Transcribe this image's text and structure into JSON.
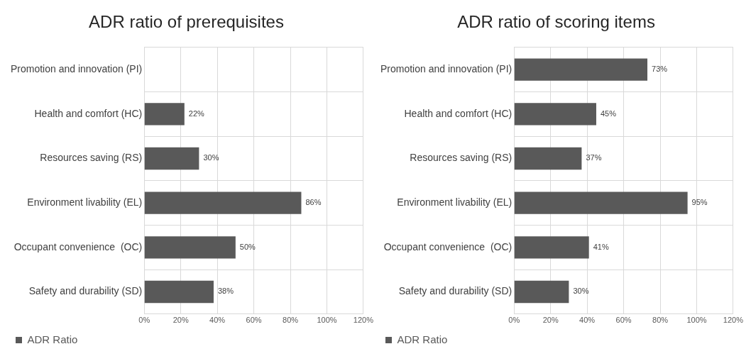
{
  "chart_data": [
    {
      "type": "bar",
      "orientation": "horizontal",
      "title": "ADR ratio of prerequisites",
      "categories": [
        "Promotion and innovation (PI)",
        "Health and comfort (HC)",
        "Resources saving (RS)",
        "Environment livability (EL)",
        "Occupant convenience  (OC)",
        "Safety and durability (SD)"
      ],
      "series": [
        {
          "name": "ADR Ratio",
          "color": "#595959",
          "values": [
            null,
            22,
            30,
            86,
            50,
            38
          ],
          "value_labels": [
            null,
            "22%",
            "30%",
            "86%",
            "50%",
            "38%"
          ]
        }
      ],
      "xlim": [
        0,
        120
      ],
      "xticks": [
        {
          "value": 0,
          "label": "0%"
        },
        {
          "value": 20,
          "label": "20%"
        },
        {
          "value": 40,
          "label": "40%"
        },
        {
          "value": 60,
          "label": "60%"
        },
        {
          "value": 80,
          "label": "80%"
        },
        {
          "value": 100,
          "label": "100%"
        },
        {
          "value": 120,
          "label": "120%"
        }
      ],
      "grid": true,
      "legend": "bottom left"
    },
    {
      "type": "bar",
      "orientation": "horizontal",
      "title": "ADR ratio of scoring items",
      "categories": [
        "Promotion and innovation (PI)",
        "Health and comfort (HC)",
        "Resources saving (RS)",
        "Environment livability (EL)",
        "Occupant convenience  (OC)",
        "Safety and durability (SD)"
      ],
      "series": [
        {
          "name": "ADR Ratio",
          "color": "#595959",
          "values": [
            73,
            45,
            37,
            95,
            41,
            30
          ],
          "value_labels": [
            "73%",
            "45%",
            "37%",
            "95%",
            "41%",
            "30%"
          ]
        }
      ],
      "xlim": [
        0,
        120
      ],
      "xticks": [
        {
          "value": 0,
          "label": "0%"
        },
        {
          "value": 20,
          "label": "20%"
        },
        {
          "value": 40,
          "label": "40%"
        },
        {
          "value": 60,
          "label": "60%"
        },
        {
          "value": 80,
          "label": "80%"
        },
        {
          "value": 100,
          "label": "100%"
        },
        {
          "value": 120,
          "label": "120%"
        }
      ],
      "grid": true,
      "legend": "bottom left"
    }
  ]
}
